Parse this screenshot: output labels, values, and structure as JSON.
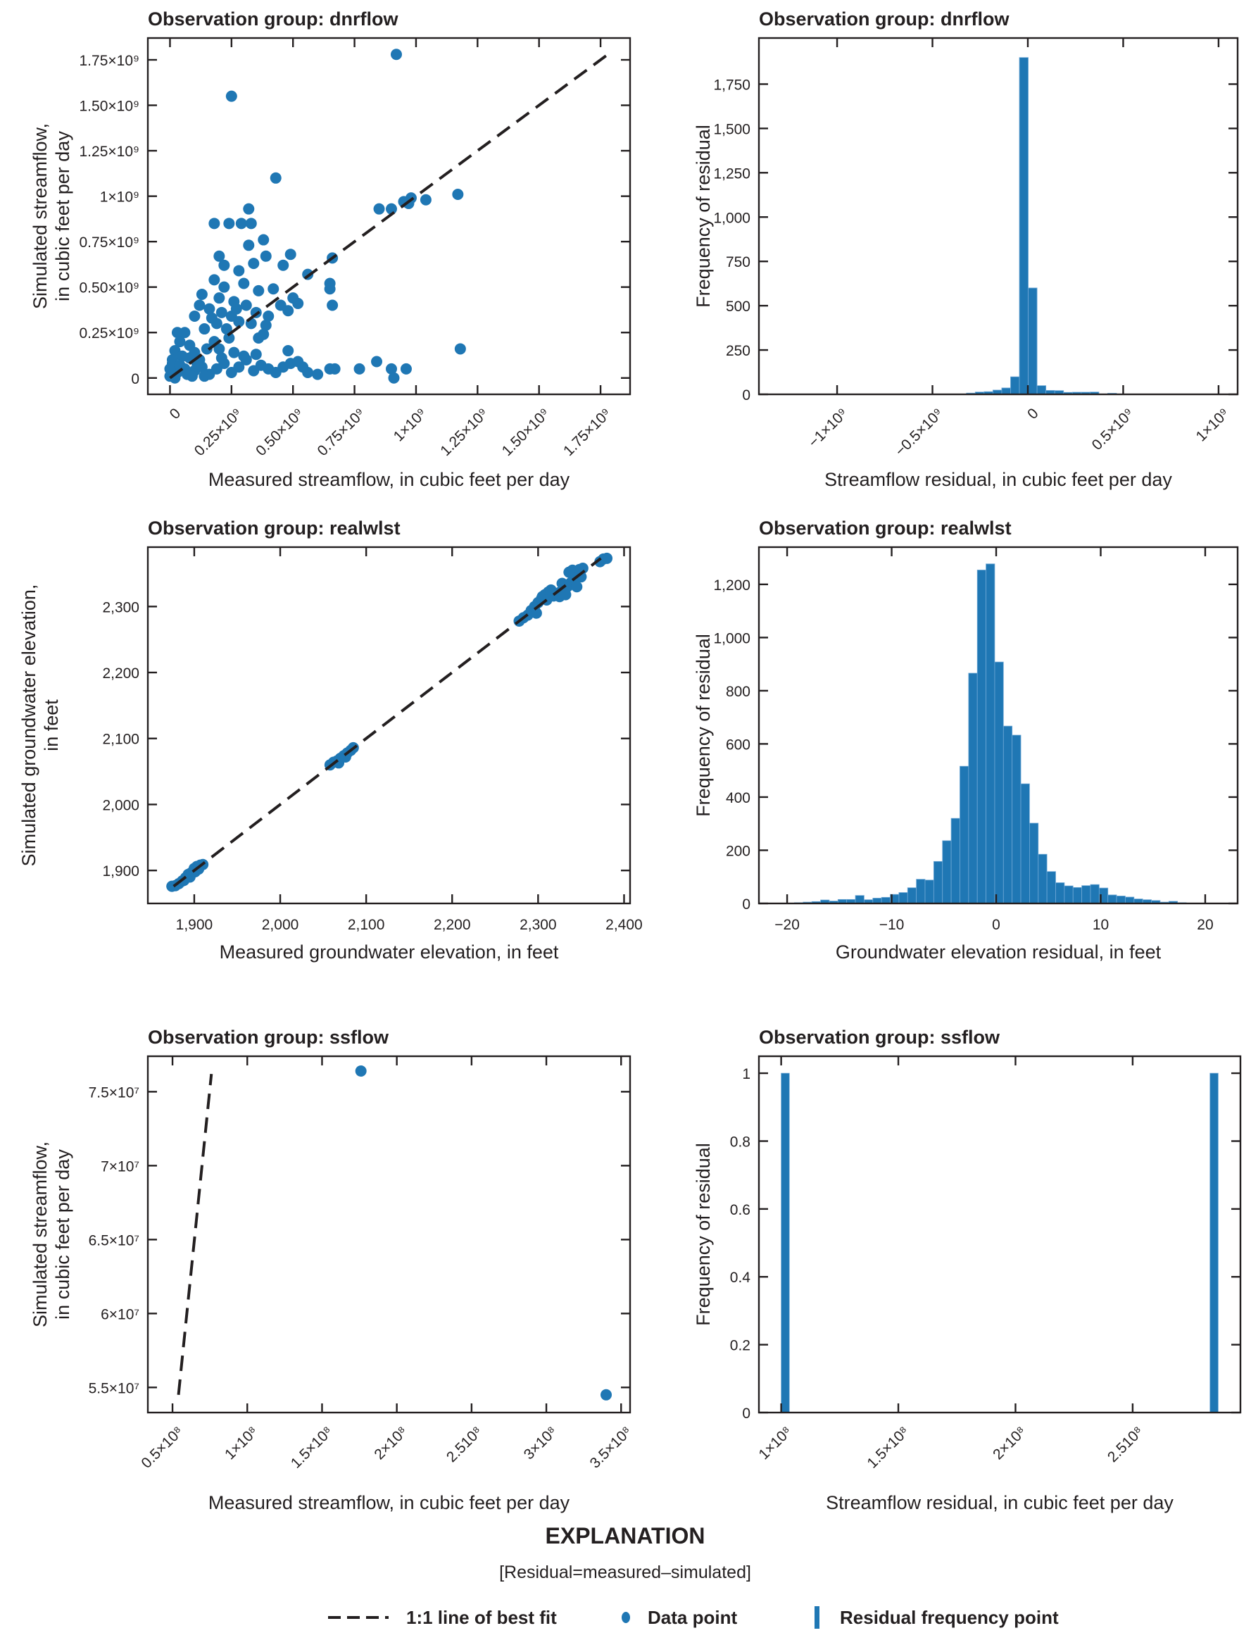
{
  "colors": {
    "data": "#1f77b4",
    "ink": "#231f20",
    "bar_edge": "#6fa8d6"
  },
  "explanation": {
    "title": "EXPLANATION",
    "note": "[Residual=measured–simulated]",
    "items": [
      {
        "symbol": "dashed-line",
        "label": "1:1 line of best fit"
      },
      {
        "symbol": "dot",
        "label": "Data point"
      },
      {
        "symbol": "bar",
        "label": "Residual frequency point"
      }
    ]
  },
  "chart_data": [
    {
      "id": "dnrflow-scatter",
      "type": "scatter",
      "title": "Observation group: dnrflow",
      "xlabel": "Measured streamflow, in cubic feet per day",
      "ylabel": [
        "Simulated streamflow,",
        "in cubic feet per day"
      ],
      "xlim": [
        -90000000.0,
        1870000000.0
      ],
      "ylim": [
        -90000000.0,
        1870000000.0
      ],
      "xticks": [
        0,
        250000000.0,
        500000000.0,
        750000000.0,
        1000000000.0,
        1250000000.0,
        1500000000.0,
        1750000000.0
      ],
      "xticklabels": [
        "0",
        "0.25×10⁹",
        "0.50×10⁹",
        "0.75×10⁹",
        "1×10⁹",
        "1.25×10⁹",
        "1.50×10⁹",
        "1.75×10⁹"
      ],
      "xtick_rotation": -45,
      "yticks": [
        0,
        250000000.0,
        500000000.0,
        750000000.0,
        1000000000.0,
        1250000000.0,
        1500000000.0,
        1750000000.0
      ],
      "yticklabels": [
        "0",
        "0.25×10⁹",
        "0.50×10⁹",
        "0.75×10⁹",
        "1×10⁹",
        "1.25×10⁹",
        "1.50×10⁹",
        "1.75×10⁹"
      ],
      "fit_line": [
        [
          0,
          0
        ],
        [
          1780000000.0,
          1780000000.0
        ]
      ],
      "points": [
        [
          920000000.0,
          1780000000.0
        ],
        [
          250000000.0,
          1550000000.0
        ],
        [
          430000000.0,
          1100000000.0
        ],
        [
          1170000000.0,
          1010000000.0
        ],
        [
          950000000.0,
          970000000.0
        ],
        [
          980000000.0,
          990000000.0
        ],
        [
          1040000000.0,
          980000000.0
        ],
        [
          970000000.0,
          960000000.0
        ],
        [
          850000000.0,
          930000000.0
        ],
        [
          900000000.0,
          930000000.0
        ],
        [
          320000000.0,
          930000000.0
        ],
        [
          180000000.0,
          850000000.0
        ],
        [
          240000000.0,
          850000000.0
        ],
        [
          290000000.0,
          850000000.0
        ],
        [
          330000000.0,
          850000000.0
        ],
        [
          380000000.0,
          760000000.0
        ],
        [
          320000000.0,
          730000000.0
        ],
        [
          200000000.0,
          670000000.0
        ],
        [
          390000000.0,
          670000000.0
        ],
        [
          490000000.0,
          680000000.0
        ],
        [
          660000000.0,
          660000000.0
        ],
        [
          220000000.0,
          620000000.0
        ],
        [
          280000000.0,
          590000000.0
        ],
        [
          340000000.0,
          630000000.0
        ],
        [
          460000000.0,
          620000000.0
        ],
        [
          560000000.0,
          570000000.0
        ],
        [
          180000000.0,
          540000000.0
        ],
        [
          650000000.0,
          520000000.0
        ],
        [
          650000000.0,
          490000000.0
        ],
        [
          660000000.0,
          400000000.0
        ],
        [
          220000000.0,
          500000000.0
        ],
        [
          300000000.0,
          520000000.0
        ],
        [
          360000000.0,
          480000000.0
        ],
        [
          420000000.0,
          490000000.0
        ],
        [
          500000000.0,
          440000000.0
        ],
        [
          520000000.0,
          410000000.0
        ],
        [
          480000000.0,
          370000000.0
        ],
        [
          130000000.0,
          460000000.0
        ],
        [
          120000000.0,
          400000000.0
        ],
        [
          160000000.0,
          380000000.0
        ],
        [
          100000000.0,
          340000000.0
        ],
        [
          200000000.0,
          440000000.0
        ],
        [
          260000000.0,
          420000000.0
        ],
        [
          310000000.0,
          400000000.0
        ],
        [
          350000000.0,
          360000000.0
        ],
        [
          400000000.0,
          340000000.0
        ],
        [
          450000000.0,
          400000000.0
        ],
        [
          250000000.0,
          340000000.0
        ],
        [
          190000000.0,
          300000000.0
        ],
        [
          230000000.0,
          270000000.0
        ],
        [
          280000000.0,
          310000000.0
        ],
        [
          330000000.0,
          300000000.0
        ],
        [
          390000000.0,
          290000000.0
        ],
        [
          360000000.0,
          220000000.0
        ],
        [
          380000000.0,
          240000000.0
        ],
        [
          170000000.0,
          330000000.0
        ],
        [
          210000000.0,
          360000000.0
        ],
        [
          270000000.0,
          380000000.0
        ],
        [
          140000000.0,
          270000000.0
        ],
        [
          240000000.0,
          220000000.0
        ],
        [
          30000000.0,
          250000000.0
        ],
        [
          60000000.0,
          250000000.0
        ],
        [
          40000000.0,
          200000000.0
        ],
        [
          80000000.0,
          180000000.0
        ],
        [
          20000000.0,
          150000000.0
        ],
        [
          50000000.0,
          120000000.0
        ],
        [
          10000000.0,
          80000000.0
        ],
        [
          100000000.0,
          140000000.0
        ],
        [
          120000000.0,
          100000000.0
        ],
        [
          150000000.0,
          160000000.0
        ],
        [
          180000000.0,
          200000000.0
        ],
        [
          200000000.0,
          160000000.0
        ],
        [
          60000000.0,
          50000000.0
        ],
        [
          30000000.0,
          30000000.0
        ],
        [
          0.0,
          10000000.0
        ],
        [
          20000000.0,
          0.0
        ],
        [
          70000000.0,
          20000000.0
        ],
        [
          100000000.0,
          40000000.0
        ],
        [
          130000000.0,
          60000000.0
        ],
        [
          160000000.0,
          20000000.0
        ],
        [
          190000000.0,
          50000000.0
        ],
        [
          220000000.0,
          80000000.0
        ],
        [
          250000000.0,
          30000000.0
        ],
        [
          280000000.0,
          60000000.0
        ],
        [
          310000000.0,
          100000000.0
        ],
        [
          340000000.0,
          40000000.0
        ],
        [
          370000000.0,
          70000000.0
        ],
        [
          400000000.0,
          50000000.0
        ],
        [
          430000000.0,
          30000000.0
        ],
        [
          460000000.0,
          60000000.0
        ],
        [
          490000000.0,
          80000000.0
        ],
        [
          520000000.0,
          90000000.0
        ],
        [
          540000000.0,
          60000000.0
        ],
        [
          560000000.0,
          30000000.0
        ],
        [
          600000000.0,
          20000000.0
        ],
        [
          480000000.0,
          150000000.0
        ],
        [
          260000000.0,
          140000000.0
        ],
        [
          300000000.0,
          120000000.0
        ],
        [
          210000000.0,
          110000000.0
        ],
        [
          350000000.0,
          130000000.0
        ],
        [
          650000000.0,
          50000000.0
        ],
        [
          670000000.0,
          50000000.0
        ],
        [
          770000000.0,
          50000000.0
        ],
        [
          840000000.0,
          90000000.0
        ],
        [
          900000000.0,
          50000000.0
        ],
        [
          910000000.0,
          0.0
        ],
        [
          960000000.0,
          50000000.0
        ],
        [
          1180000000.0,
          160000000.0
        ],
        [
          90000000.0,
          10000000.0
        ],
        [
          110000000.0,
          80000000.0
        ],
        [
          0.0,
          50000000.0
        ],
        [
          10000000.0,
          100000000.0
        ],
        [
          40000000.0,
          70000000.0
        ],
        [
          80000000.0,
          110000000.0
        ],
        [
          140000000.0,
          10000000.0
        ]
      ]
    },
    {
      "id": "dnrflow-hist",
      "type": "bar",
      "title": "Observation group: dnrflow",
      "xlabel": "Streamflow residual, in cubic feet per day",
      "ylabel": [
        "Frequency of residual"
      ],
      "xlim": [
        -1410000000.0,
        1100000000.0
      ],
      "ylim": [
        0,
        2010
      ],
      "xticks": [
        -1000000000.0,
        -500000000.0,
        0,
        500000000.0,
        1000000000.0
      ],
      "xticklabels": [
        "−1×10⁹",
        "−0.5×10⁹",
        "0",
        "0.5×10⁹",
        "1×10⁹"
      ],
      "xtick_rotation": -45,
      "yticks": [
        0,
        250,
        500,
        750,
        1000,
        1250,
        1500,
        1750
      ],
      "yticklabels": [
        "0",
        "250",
        "500",
        "750",
        "1,000",
        "1,250",
        "1,500",
        "1,750"
      ],
      "bin_width": 46300000.0,
      "bin_start": -322000000.0,
      "values": [
        7,
        13,
        15,
        24,
        36,
        99,
        1900,
        600,
        49,
        22,
        21,
        11,
        12,
        12,
        13,
        2,
        6,
        2
      ]
    },
    {
      "id": "realwlst-scatter",
      "type": "scatter",
      "title": "Observation group: realwlst",
      "xlabel": "Measured groundwater elevation, in feet",
      "ylabel": [
        "Simulated groundwater elevation,",
        "in feet"
      ],
      "xlim": [
        1846,
        2407
      ],
      "ylim": [
        1850,
        2390
      ],
      "xticks": [
        1900,
        2000,
        2100,
        2200,
        2300,
        2400
      ],
      "xticklabels": [
        "1,900",
        "2,000",
        "2,100",
        "2,200",
        "2,300",
        "2,400"
      ],
      "xtick_rotation": 0,
      "yticks": [
        1900,
        2000,
        2100,
        2200,
        2300
      ],
      "yticklabels": [
        "1,900",
        "2,000",
        "2,100",
        "2,200",
        "2,300"
      ],
      "fit_line": [
        [
          1876,
          1876
        ],
        [
          2373,
          2373
        ]
      ],
      "points": [
        [
          1874,
          1876
        ],
        [
          1878,
          1877
        ],
        [
          1882,
          1880
        ],
        [
          1886,
          1884
        ],
        [
          1890,
          1889
        ],
        [
          1893,
          1894
        ],
        [
          1897,
          1897
        ],
        [
          1900,
          1903
        ],
        [
          1903,
          1906
        ],
        [
          1907,
          1908
        ],
        [
          1910,
          1909
        ],
        [
          1895,
          1890
        ],
        [
          1901,
          1898
        ],
        [
          1905,
          1902
        ],
        [
          1888,
          1885
        ],
        [
          2058,
          2060
        ],
        [
          2062,
          2064
        ],
        [
          2066,
          2066
        ],
        [
          2070,
          2070
        ],
        [
          2074,
          2074
        ],
        [
          2078,
          2078
        ],
        [
          2082,
          2082
        ],
        [
          2085,
          2086
        ],
        [
          2068,
          2063
        ],
        [
          2076,
          2072
        ],
        [
          2278,
          2278
        ],
        [
          2283,
          2283
        ],
        [
          2288,
          2287
        ],
        [
          2292,
          2294
        ],
        [
          2296,
          2300
        ],
        [
          2300,
          2306
        ],
        [
          2304,
          2312
        ],
        [
          2308,
          2318
        ],
        [
          2312,
          2322
        ],
        [
          2305,
          2315
        ],
        [
          2310,
          2310
        ],
        [
          2318,
          2316
        ],
        [
          2322,
          2320
        ],
        [
          2326,
          2322
        ],
        [
          2330,
          2326
        ],
        [
          2334,
          2330
        ],
        [
          2338,
          2336
        ],
        [
          2342,
          2340
        ],
        [
          2345,
          2346
        ],
        [
          2340,
          2355
        ],
        [
          2336,
          2352
        ],
        [
          2348,
          2356
        ],
        [
          2352,
          2358
        ],
        [
          2332,
          2318
        ],
        [
          2325,
          2315
        ],
        [
          2345,
          2330
        ],
        [
          2372,
          2368
        ],
        [
          2376,
          2372
        ],
        [
          2380,
          2373
        ],
        [
          2298,
          2290
        ],
        [
          2315,
          2325
        ],
        [
          2328,
          2335
        ],
        [
          2350,
          2345
        ]
      ]
    },
    {
      "id": "realwlst-hist",
      "type": "bar",
      "title": "Observation group: realwlst",
      "xlabel": "Groundwater elevation residual, in feet",
      "ylabel": [
        "Frequency of residual"
      ],
      "xlim": [
        -22.7,
        23.1
      ],
      "ylim": [
        0,
        1340
      ],
      "xticks": [
        -20,
        -10,
        0,
        10,
        20
      ],
      "xticklabels": [
        "−20",
        "−10",
        "0",
        "10",
        "20"
      ],
      "xtick_rotation": 0,
      "yticks": [
        0,
        200,
        400,
        600,
        800,
        1000,
        1200
      ],
      "yticklabels": [
        "0",
        "200",
        "400",
        "600",
        "800",
        "1,000",
        "1,200"
      ],
      "bin_width": 0.833,
      "bin_start": -19.3,
      "values": [
        3,
        5,
        7,
        13,
        9,
        15,
        15,
        30,
        14,
        20,
        23,
        34,
        41,
        59,
        91,
        88,
        158,
        236,
        320,
        516,
        866,
        1254,
        1277,
        908,
        667,
        633,
        450,
        302,
        185,
        120,
        78,
        66,
        60,
        67,
        71,
        58,
        32,
        28,
        24,
        17,
        14,
        11,
        5,
        8,
        3
      ]
    },
    {
      "id": "ssflow-scatter",
      "type": "scatter",
      "title": "Observation group: ssflow",
      "xlabel": "Measured streamflow, in cubic feet per day",
      "ylabel": [
        "Simulated streamflow,",
        "in cubic feet per day"
      ],
      "xlim": [
        33500000.0,
        356000000.0
      ],
      "ylim": [
        53300000.0,
        77400000.0
      ],
      "xticks": [
        50000000.0,
        100000000.0,
        150000000.0,
        200000000.0,
        250000000.0,
        300000000.0,
        350000000.0
      ],
      "xticklabels": [
        "0.5×10⁸",
        "1×10⁸",
        "1.5×10⁸",
        "2×10⁸",
        "2.510⁸",
        "3×10⁸",
        "3.5×10⁸"
      ],
      "xtick_rotation": -45,
      "yticks": [
        55000000.0,
        60000000.0,
        65000000.0,
        70000000.0,
        75000000.0
      ],
      "yticklabels": [
        "5.5×10⁷",
        "6×10⁷",
        "6.5×10⁷",
        "7×10⁷",
        "7.5×10⁷"
      ],
      "fit_line": [
        [
          54000000.0,
          54500000.0
        ],
        [
          76000000.0,
          76200000.0
        ]
      ],
      "points": [
        [
          176000000.0,
          76400000.0
        ],
        [
          340000000.0,
          54500000.0
        ]
      ]
    },
    {
      "id": "ssflow-hist",
      "type": "bar",
      "title": "Observation group: ssflow",
      "xlabel": "Streamflow residual, in cubic feet per day",
      "ylabel": [
        "Frequency of residual"
      ],
      "xlim": [
        90500000.0,
        296000000.0
      ],
      "ylim": [
        0,
        1.05
      ],
      "xticks": [
        100000000.0,
        150000000.0,
        200000000.0,
        250000000.0
      ],
      "xticklabels": [
        "1×10⁸",
        "1.5×10⁸",
        "2×10⁸",
        "2.510⁸"
      ],
      "xtick_rotation": -45,
      "yticks": [
        0,
        0.2,
        0.4,
        0.6,
        0.8,
        1
      ],
      "yticklabels": [
        "0",
        "0.2",
        "0.4",
        "0.6",
        "0.8",
        "1"
      ],
      "bars": [
        {
          "x0": 100000000.0,
          "x1": 103500000.0,
          "value": 1
        },
        {
          "x0": 283000000.0,
          "x1": 286500000.0,
          "value": 1
        }
      ]
    }
  ]
}
